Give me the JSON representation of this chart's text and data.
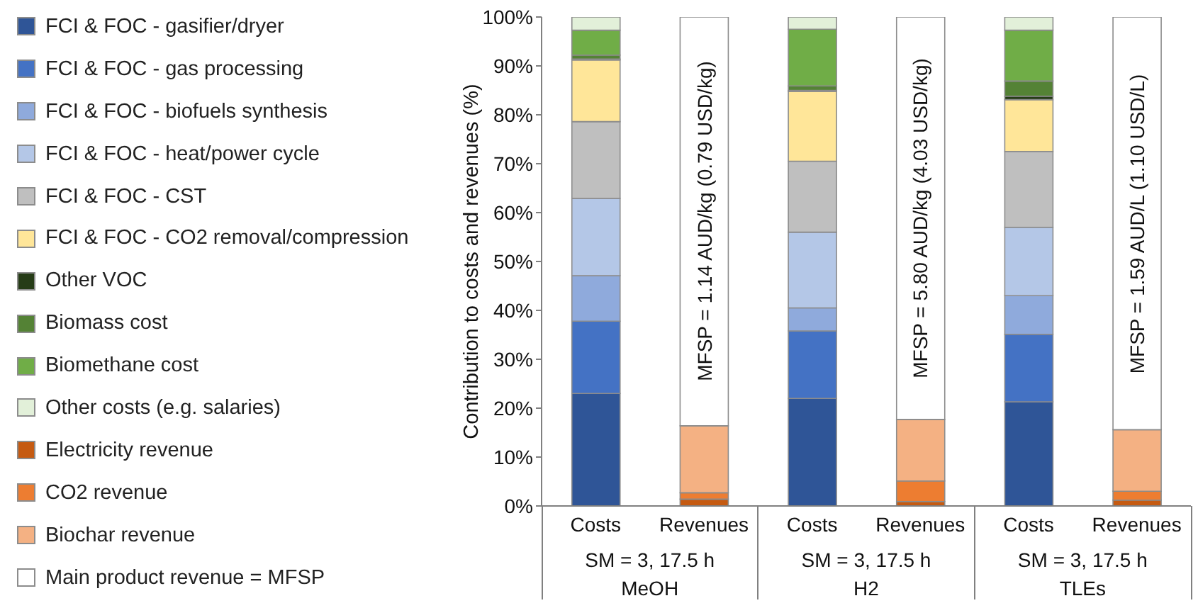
{
  "chart_data": {
    "type": "bar",
    "stacked": true,
    "ylabel": "Contribution to costs and revenues (%)",
    "categories": [
      "Costs",
      "Revenues",
      "Costs",
      "Revenues",
      "Costs",
      "Revenues"
    ],
    "ylim": [
      0,
      100
    ],
    "yticks": [
      {
        "value": 0,
        "label": "0%"
      },
      {
        "value": 10,
        "label": "10%"
      },
      {
        "value": 20,
        "label": "20%"
      },
      {
        "value": 30,
        "label": "30%"
      },
      {
        "value": 40,
        "label": "40%"
      },
      {
        "value": 50,
        "label": "50%"
      },
      {
        "value": 60,
        "label": "60%"
      },
      {
        "value": 70,
        "label": "70%"
      },
      {
        "value": 80,
        "label": "80%"
      },
      {
        "value": 90,
        "label": "90%"
      },
      {
        "value": 100,
        "label": "100%"
      }
    ],
    "grid": false,
    "legend": "left",
    "series": [
      {
        "name": "FCI & FOC - gasifier/dryer",
        "color": "#2f5597",
        "values": [
          23.0,
          null,
          22.0,
          null,
          21.3,
          null
        ]
      },
      {
        "name": "FCI & FOC - gas processing",
        "color": "#4472c4",
        "values": [
          14.8,
          null,
          13.8,
          null,
          13.8,
          null
        ]
      },
      {
        "name": "FCI & FOC - biofuels synthesis",
        "color": "#8faadc",
        "values": [
          9.3,
          null,
          4.7,
          null,
          7.9,
          null
        ]
      },
      {
        "name": "FCI & FOC - heat/power cycle",
        "color": "#b4c7e7",
        "values": [
          15.8,
          null,
          15.5,
          null,
          14.0,
          null
        ]
      },
      {
        "name": "FCI & FOC - CST",
        "color": "#bfbfbf",
        "values": [
          15.7,
          null,
          14.5,
          null,
          15.5,
          null
        ]
      },
      {
        "name": "FCI & FOC - CO2 removal/compression",
        "color": "#ffe699",
        "values": [
          12.6,
          null,
          14.3,
          null,
          10.6,
          null
        ]
      },
      {
        "name": "Other VOC",
        "color": "#263c17",
        "values": [
          0.2,
          null,
          0.2,
          null,
          0.7,
          null
        ]
      },
      {
        "name": "Biomass cost",
        "color": "#548235",
        "values": [
          0.8,
          null,
          0.9,
          null,
          3.1,
          null
        ]
      },
      {
        "name": "Biomethane cost",
        "color": "#70ad47",
        "values": [
          5.1,
          null,
          11.6,
          null,
          10.4,
          null
        ]
      },
      {
        "name": "Other costs (e.g. salaries)",
        "color": "#e2f0d9",
        "values": [
          2.7,
          null,
          2.5,
          null,
          2.7,
          null
        ]
      },
      {
        "name": "Electricity revenue",
        "color": "#c55a11",
        "values": [
          null,
          1.4,
          null,
          0.9,
          null,
          1.2
        ]
      },
      {
        "name": "CO2 revenue",
        "color": "#ed7d31",
        "values": [
          null,
          1.3,
          null,
          4.2,
          null,
          1.8
        ]
      },
      {
        "name": "Biochar revenue",
        "color": "#f4b183",
        "values": [
          null,
          13.7,
          null,
          12.6,
          null,
          12.6
        ]
      },
      {
        "name": "Main product revenue = MFSP",
        "color": "#ffffff",
        "values": [
          null,
          83.6,
          null,
          82.3,
          null,
          84.4
        ]
      }
    ],
    "annotations": [
      "MFSP = 1.14 AUD/kg (0.79 USD/kg)",
      "MFSP = 5.80 AUD/kg (4.03 USD/kg)",
      "MFSP = 1.59 AUD/L (1.10 USD/L)",
      "SM = 3, 17.5 h",
      "SM = 3, 17.5 h",
      "SM = 3, 17.5 h",
      "MeOH",
      "H2",
      "TLEs"
    ]
  }
}
